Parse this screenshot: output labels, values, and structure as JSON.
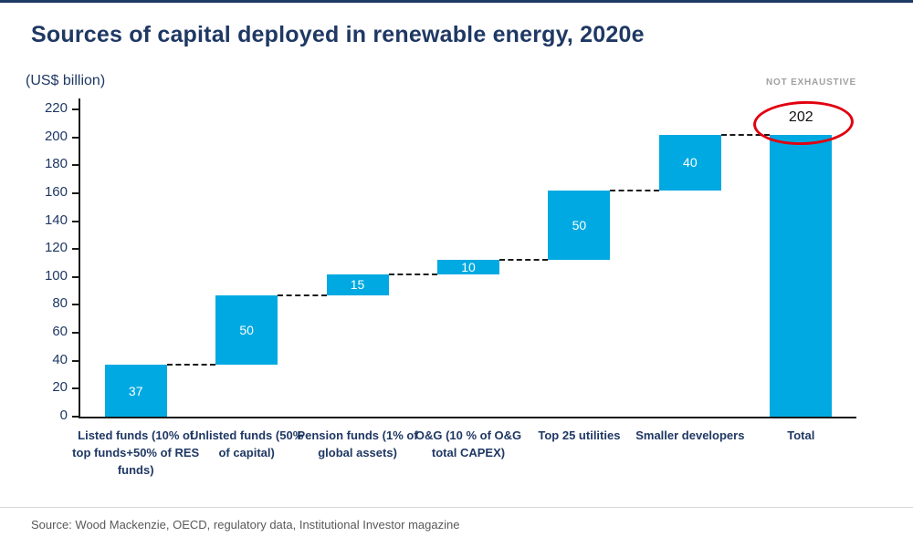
{
  "page": {
    "title": "Sources of capital deployed in renewable energy, 2020e",
    "not_exhaustive_label": "NOT EXHAUSTIVE",
    "source_text": "Source: Wood Mackenzie, OECD, regulatory data, Institutional Investor magazine"
  },
  "colors": {
    "bar": "#00A9E1",
    "title_text": "#1F3864",
    "axis_text": "#1F3864",
    "axis_line": "#1A1A1A",
    "connector": "#1A1A1A",
    "annotation_circle": "#E1000F",
    "not_exhaustive": "#A0A0A0",
    "source_text": "#595959",
    "top_accent": "#1F3864"
  },
  "chart_data": {
    "type": "bar",
    "subtype": "waterfall",
    "title": "Sources of capital deployed in renewable energy, 2020e",
    "xlabel": "",
    "ylabel": "(US$ billion)",
    "ylim": [
      0,
      220
    ],
    "ytick_step": 20,
    "grid": false,
    "legend": "none",
    "categories": [
      "Listed funds (10% of top funds+50% of RES funds)",
      "Unlisted funds (50% of capital)",
      "Pension funds (1% of global assets)",
      "O&G (10 % of O&G total CAPEX)",
      "Top 25 utilities",
      "Smaller developers",
      "Total"
    ],
    "series": [
      {
        "name": "Capital deployed",
        "items": [
          {
            "label": "Listed funds (10% of top funds+50% of RES funds)",
            "value": 37,
            "start": 0,
            "end": 37,
            "is_total": false
          },
          {
            "label": "Unlisted funds (50% of capital)",
            "value": 50,
            "start": 37,
            "end": 87,
            "is_total": false
          },
          {
            "label": "Pension funds (1% of global assets)",
            "value": 15,
            "start": 87,
            "end": 102,
            "is_total": false
          },
          {
            "label": "O&G (10 % of O&G total CAPEX)",
            "value": 10,
            "start": 102,
            "end": 112,
            "is_total": false
          },
          {
            "label": "Top 25 utilities",
            "value": 50,
            "start": 112,
            "end": 162,
            "is_total": false
          },
          {
            "label": "Smaller developers",
            "value": 40,
            "start": 162,
            "end": 202,
            "is_total": false
          },
          {
            "label": "Total",
            "value": 202,
            "start": 0,
            "end": 202,
            "is_total": true
          }
        ]
      }
    ],
    "annotations": [
      {
        "target": "Total",
        "text": "202",
        "style": "hand-drawn red circle around total value"
      }
    ]
  }
}
